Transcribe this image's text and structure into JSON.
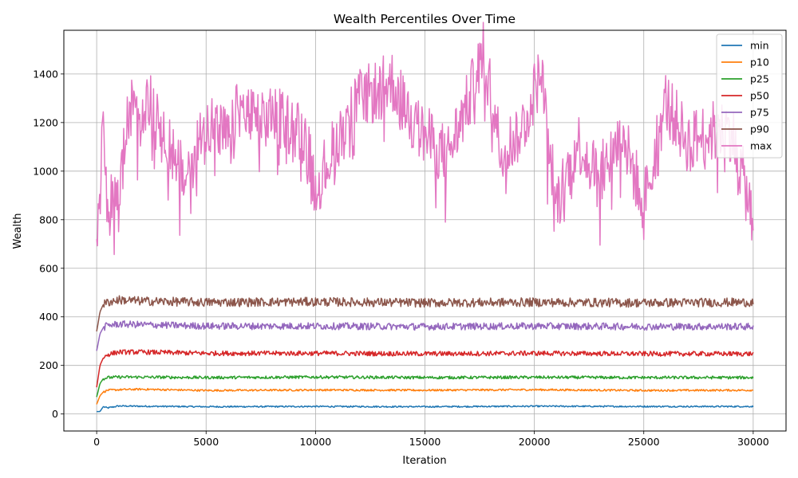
{
  "chart_data": {
    "type": "line",
    "title": "Wealth Percentiles Over Time",
    "xlabel": "Iteration",
    "ylabel": "Wealth",
    "xlim": [
      -1500,
      31500
    ],
    "ylim": [
      -70,
      1580
    ],
    "xticks": [
      0,
      5000,
      10000,
      15000,
      20000,
      25000,
      30000
    ],
    "yticks": [
      0,
      200,
      400,
      600,
      800,
      1000,
      1200,
      1400
    ],
    "grid": true,
    "legend_position": "top-right",
    "series": [
      {
        "name": "min",
        "color": "#1f77b4",
        "x": [
          0,
          150,
          300,
          500,
          1000,
          2000,
          5000,
          10000,
          15000,
          20000,
          25000,
          30000
        ],
        "y": [
          10,
          10,
          30,
          25,
          33,
          32,
          30,
          31,
          30,
          32,
          31,
          31
        ]
      },
      {
        "name": "p10",
        "color": "#ff7f0e",
        "x": [
          0,
          150,
          300,
          500,
          1000,
          2000,
          5000,
          10000,
          15000,
          20000,
          25000,
          30000
        ],
        "y": [
          40,
          75,
          90,
          98,
          100,
          102,
          97,
          99,
          98,
          100,
          97,
          98
        ]
      },
      {
        "name": "p25",
        "color": "#2ca02c",
        "x": [
          0,
          150,
          300,
          500,
          1000,
          2000,
          5000,
          10000,
          15000,
          20000,
          25000,
          30000
        ],
        "y": [
          70,
          125,
          145,
          150,
          152,
          152,
          150,
          152,
          150,
          151,
          150,
          150
        ]
      },
      {
        "name": "p50",
        "color": "#d62728",
        "x": [
          0,
          150,
          300,
          500,
          1000,
          2000,
          5000,
          10000,
          15000,
          20000,
          25000,
          30000
        ],
        "y": [
          110,
          200,
          230,
          245,
          255,
          255,
          250,
          250,
          248,
          250,
          248,
          248
        ]
      },
      {
        "name": "p75",
        "color": "#9467bd",
        "x": [
          0,
          150,
          300,
          500,
          1000,
          2000,
          5000,
          10000,
          15000,
          20000,
          25000,
          30000
        ],
        "y": [
          260,
          330,
          355,
          365,
          370,
          368,
          362,
          362,
          360,
          362,
          360,
          360
        ]
      },
      {
        "name": "p90",
        "color": "#8c564b",
        "x": [
          0,
          150,
          300,
          500,
          1000,
          2000,
          5000,
          10000,
          15000,
          20000,
          25000,
          30000
        ],
        "y": [
          340,
          420,
          450,
          460,
          470,
          465,
          460,
          462,
          458,
          460,
          458,
          460
        ]
      },
      {
        "name": "max",
        "color": "#e377c2",
        "x": [
          0,
          100,
          300,
          500,
          1000,
          1500,
          2200,
          2800,
          4000,
          5000,
          6000,
          6500,
          7500,
          8000,
          9500,
          10000,
          11000,
          12000,
          13500,
          14500,
          16000,
          17000,
          17700,
          18500,
          19500,
          20300,
          21000,
          22000,
          23000,
          24000,
          25000,
          26000,
          27000,
          28000,
          29000,
          30000
        ],
        "y": [
          690,
          880,
          1280,
          860,
          920,
          1270,
          1310,
          1270,
          980,
          1230,
          1150,
          1280,
          1210,
          1255,
          1180,
          950,
          1150,
          1310,
          1390,
          1210,
          1080,
          1310,
          1515,
          1090,
          1210,
          1430,
          880,
          1140,
          1000,
          1170,
          890,
          1310,
          1140,
          1180,
          1190,
          820
        ]
      }
    ]
  }
}
